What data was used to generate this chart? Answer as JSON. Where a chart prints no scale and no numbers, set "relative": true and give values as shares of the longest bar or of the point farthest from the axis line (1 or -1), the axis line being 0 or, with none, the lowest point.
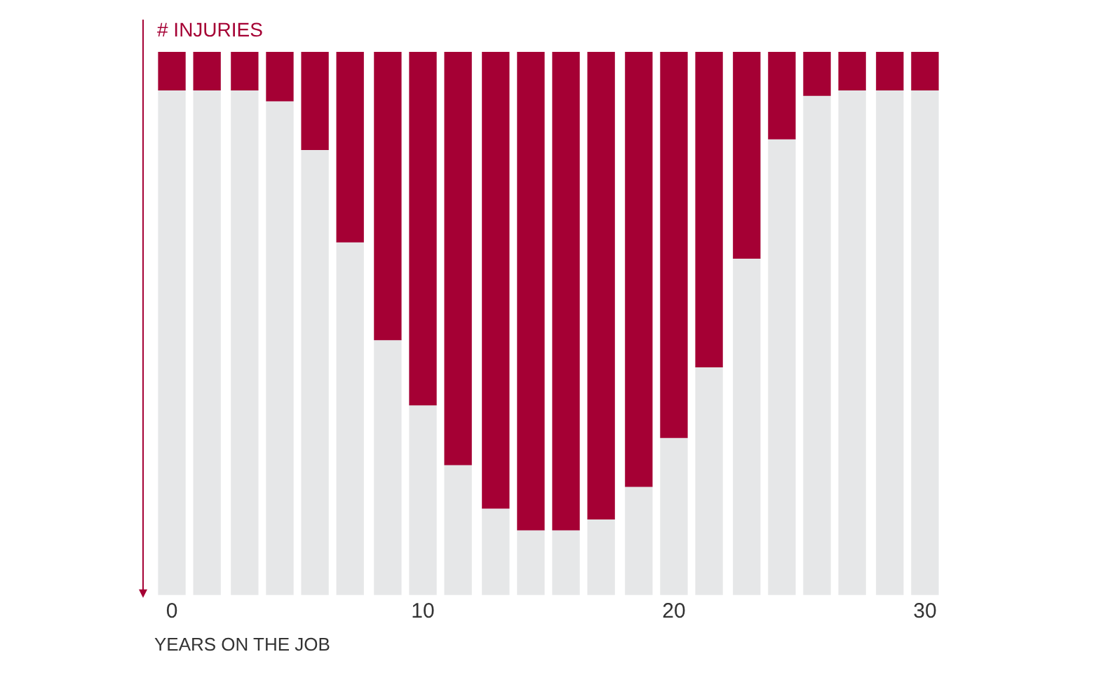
{
  "chart_data": {
    "type": "bar",
    "relative": true,
    "ylabel": "# INJURIES",
    "xlabel": "YEARS ON THE JOB",
    "x": [
      0,
      1.4,
      2.9,
      4.3,
      5.7,
      7.1,
      8.6,
      10,
      11.4,
      12.9,
      14.3,
      15.7,
      17.1,
      18.6,
      20,
      21.4,
      22.9,
      24.3,
      25.7,
      27.1,
      28.6,
      30
    ],
    "xlim": [
      -0.7,
      30.7
    ],
    "stacked": true,
    "xticks": [
      0,
      10,
      20,
      30
    ],
    "grid": false,
    "legend": false,
    "series": [
      {
        "color": "#a50034",
        "values": [
          -0.07,
          -0.07,
          -0.07,
          -0.09,
          -0.18,
          -0.35,
          -0.53,
          -0.65,
          -0.76,
          -0.84,
          -0.88,
          -0.88,
          -0.86,
          -0.8,
          -0.71,
          -0.58,
          -0.38,
          -0.16,
          -0.08,
          -0.07,
          -0.07,
          -0.07
        ]
      },
      {
        "color": "#e6e7e8",
        "values": [
          -0.93,
          -0.93,
          -0.93,
          -0.91,
          -0.82,
          -0.65,
          -0.47,
          -0.35,
          -0.24,
          -0.16,
          -0.12,
          -0.12,
          -0.14,
          -0.2,
          -0.29,
          -0.42,
          -0.62,
          -0.84,
          -0.92,
          -0.93,
          -0.93,
          -0.93
        ]
      }
    ]
  }
}
